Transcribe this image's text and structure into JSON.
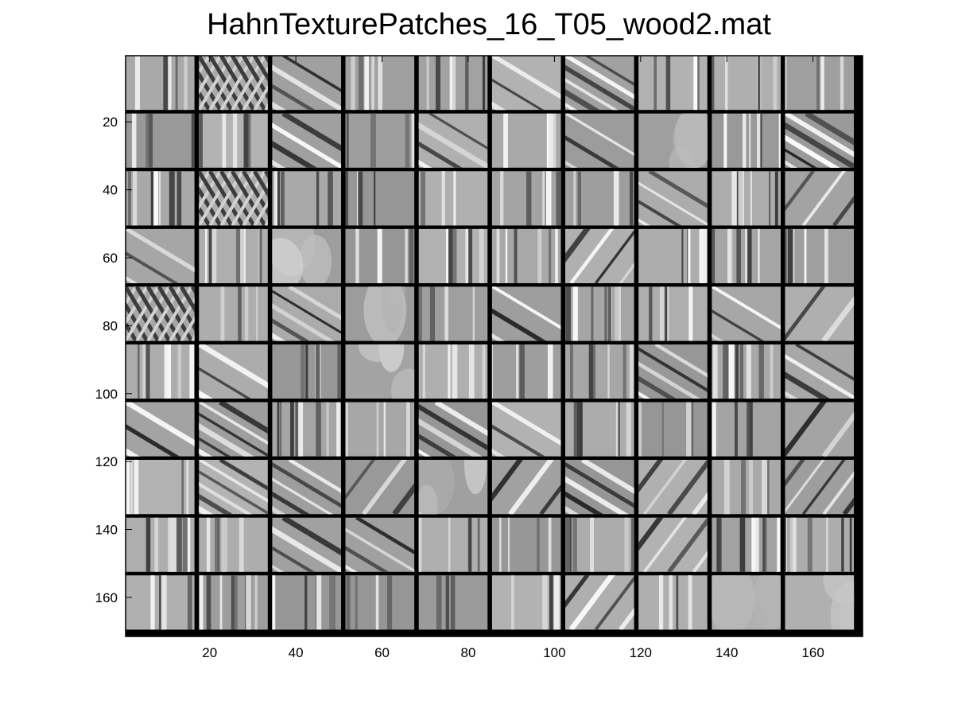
{
  "chart_data": {
    "type": "heatmap",
    "title": "HahnTexturePatches_16_T05_wood2.mat",
    "xlabel": "",
    "ylabel": "",
    "xlim": [
      0.5,
      171.5
    ],
    "ylim": [
      171.5,
      0.5
    ],
    "colormap": "gray",
    "grid": false,
    "tile_grid": {
      "rows": 10,
      "cols": 10,
      "patch_size": 16,
      "border": 1
    },
    "x_ticks": [
      20,
      40,
      60,
      80,
      100,
      120,
      140,
      160
    ],
    "y_ticks": [
      20,
      40,
      60,
      80,
      100,
      120,
      140,
      160
    ],
    "colors": {
      "background": "#ffffff",
      "border": "#000000",
      "patch_mid": "#a6a6a6"
    },
    "patches": [
      [
        "vertical",
        "checker",
        "diagonal-down",
        "vertical",
        "vertical",
        "diagonal-down",
        "diagonal-down",
        "vertical",
        "vertical",
        "vertical"
      ],
      [
        "vertical",
        "vertical",
        "diagonal-down",
        "vertical",
        "diagonal-down",
        "vertical",
        "diagonal-down",
        "smooth",
        "vertical",
        "diagonal-down"
      ],
      [
        "vertical",
        "checker",
        "vertical",
        "vertical",
        "vertical",
        "vertical",
        "vertical",
        "diagonal-down",
        "vertical",
        "diagonal-up"
      ],
      [
        "diagonal-down",
        "vertical",
        "smooth",
        "vertical",
        "vertical",
        "vertical",
        "diagonal-up",
        "vertical",
        "vertical",
        "vertical"
      ],
      [
        "checker",
        "vertical",
        "diagonal-down",
        "smooth",
        "vertical",
        "diagonal-down",
        "vertical",
        "vertical",
        "diagonal-down",
        "diagonal-up"
      ],
      [
        "vertical",
        "diagonal-down",
        "vertical",
        "smooth",
        "vertical",
        "vertical",
        "vertical",
        "diagonal-down",
        "vertical",
        "diagonal-down"
      ],
      [
        "diagonal-down",
        "diagonal-down",
        "vertical",
        "vertical",
        "diagonal-down",
        "diagonal-down",
        "vertical",
        "vertical",
        "vertical",
        "diagonal-up"
      ],
      [
        "vertical",
        "diagonal-down",
        "diagonal-down",
        "diagonal-up",
        "smooth",
        "diagonal-up",
        "diagonal-down",
        "diagonal-up",
        "vertical",
        "diagonal-up"
      ],
      [
        "vertical",
        "vertical",
        "diagonal-down",
        "diagonal-down",
        "vertical",
        "vertical",
        "vertical",
        "diagonal-up",
        "vertical",
        "vertical"
      ],
      [
        "vertical",
        "vertical",
        "vertical",
        "vertical",
        "vertical",
        "vertical",
        "diagonal-up",
        "vertical",
        "smooth",
        "smooth"
      ]
    ]
  }
}
